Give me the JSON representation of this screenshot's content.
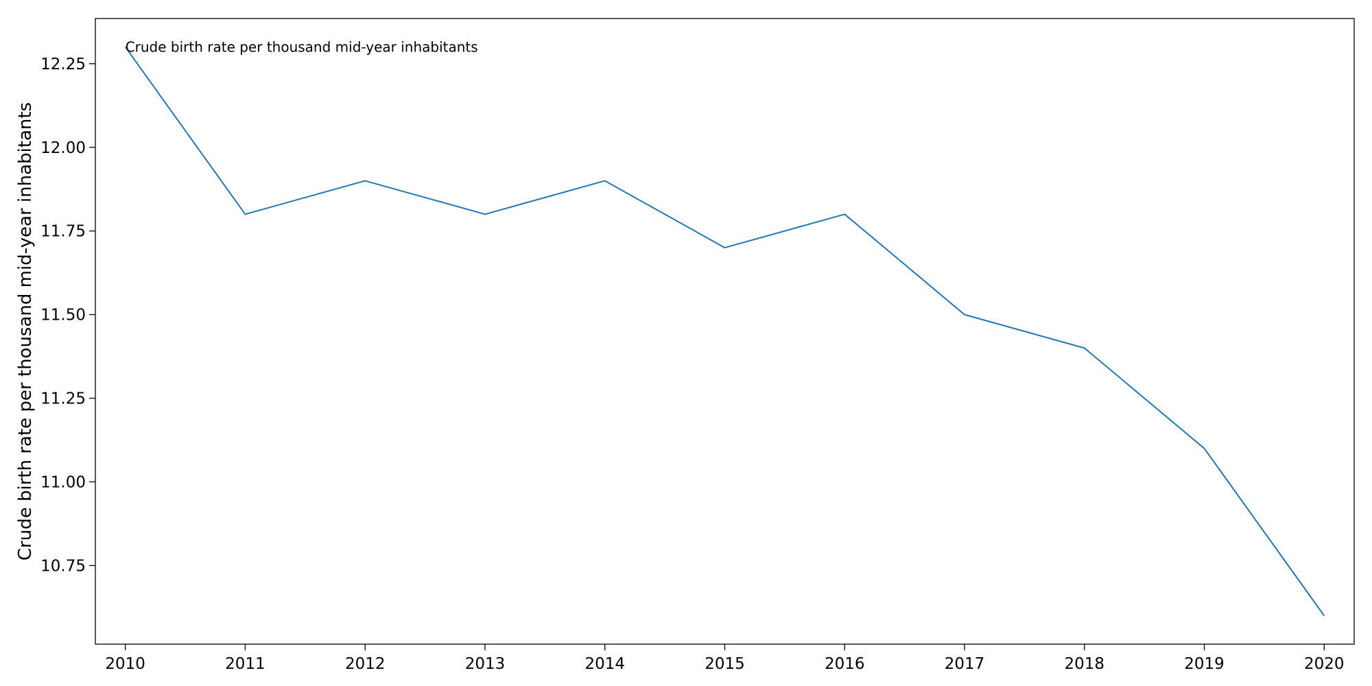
{
  "chart_data": {
    "type": "line",
    "title": "",
    "xlabel": "",
    "ylabel": "Crude birth rate per thousand mid-year inhabitants",
    "annotation": "Crude birth rate per thousand mid-year inhabitants",
    "x": [
      2010,
      2011,
      2012,
      2013,
      2014,
      2015,
      2016,
      2017,
      2018,
      2019,
      2020
    ],
    "x_tick_labels": [
      "2010",
      "2011",
      "2012",
      "2013",
      "2014",
      "2015",
      "2016",
      "2017",
      "2018",
      "2019",
      "2020"
    ],
    "series": [
      {
        "values": [
          12.3,
          11.8,
          11.9,
          11.8,
          11.9,
          11.7,
          11.8,
          11.5,
          11.4,
          11.1,
          10.6
        ],
        "color": "#1f77b4"
      }
    ],
    "y_ticks": [
      10.75,
      11.0,
      11.25,
      11.5,
      11.75,
      12.0,
      12.25
    ],
    "y_tick_labels": [
      "10.75",
      "11.00",
      "11.25",
      "11.50",
      "11.75",
      "12.00",
      "12.25"
    ],
    "xlim": [
      2009.75,
      2020.25
    ],
    "ylim": [
      10.515,
      12.385
    ],
    "grid": false,
    "legend": false
  }
}
